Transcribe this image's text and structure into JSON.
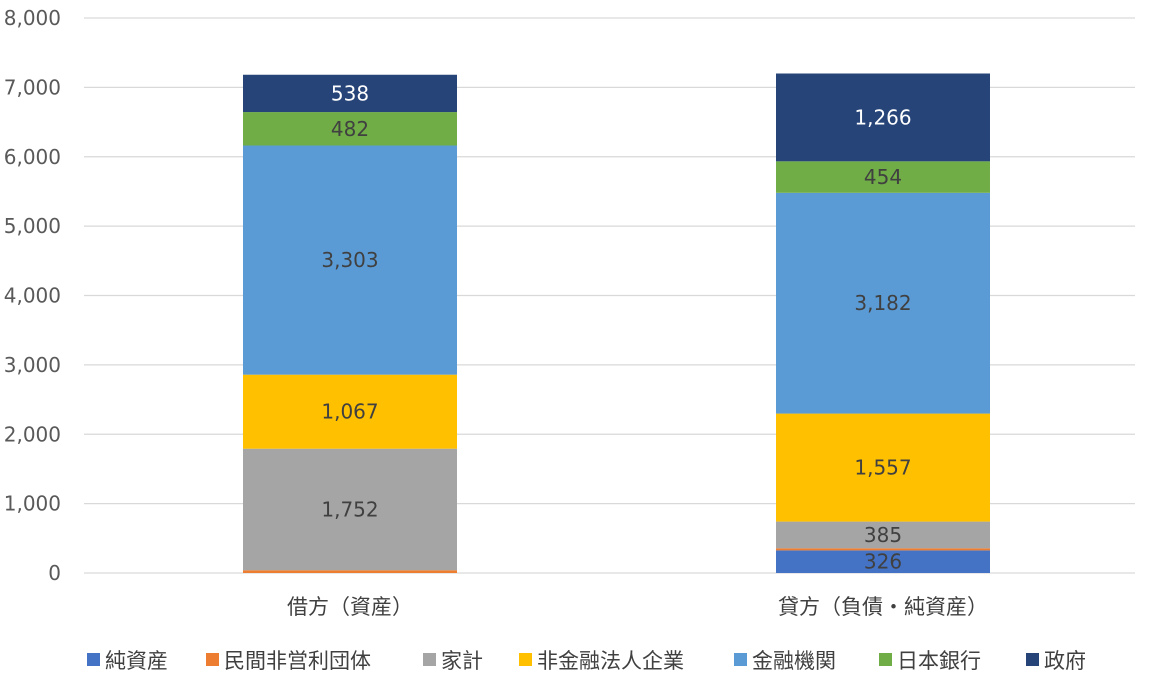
{
  "chart_data": {
    "type": "bar",
    "stacked": true,
    "title": "",
    "xlabel": "",
    "ylabel": "",
    "ylim": [
      0,
      8000
    ],
    "yticks": [
      0,
      1000,
      2000,
      3000,
      4000,
      5000,
      6000,
      7000,
      8000
    ],
    "ytick_labels": [
      "0",
      "1,000",
      "2,000",
      "3,000",
      "4,000",
      "5,000",
      "6,000",
      "7,000",
      "8,000"
    ],
    "grid": true,
    "legend_position": "bottom",
    "categories": [
      "借方（資産）",
      "貸方（負債・純資産）"
    ],
    "series": [
      {
        "name": "純資産",
        "color": "#4472C4",
        "values": [
          0,
          326
        ],
        "labels": [
          "",
          "326"
        ],
        "label_color": "#404040"
      },
      {
        "name": "民間非営利団体",
        "color": "#ED7D31",
        "values": [
          40,
          30
        ],
        "labels": [
          "",
          ""
        ],
        "label_color": "#404040"
      },
      {
        "name": "家計",
        "color": "#A5A5A5",
        "values": [
          1752,
          385
        ],
        "labels": [
          "1,752",
          "385"
        ],
        "label_color": "#404040"
      },
      {
        "name": "非金融法人企業",
        "color": "#FFC000",
        "values": [
          1067,
          1557
        ],
        "labels": [
          "1,067",
          "1,557"
        ],
        "label_color": "#404040"
      },
      {
        "name": "金融機関",
        "color": "#5B9BD5",
        "values": [
          3303,
          3182
        ],
        "labels": [
          "3,303",
          "3,182"
        ],
        "label_color": "#404040"
      },
      {
        "name": "日本銀行",
        "color": "#70AD47",
        "values": [
          482,
          454
        ],
        "labels": [
          "482",
          "454"
        ],
        "label_color": "#404040"
      },
      {
        "name": "政府",
        "color": "#264478",
        "values": [
          538,
          1266
        ],
        "labels": [
          "538",
          "1,266"
        ],
        "label_color": "#ffffff"
      }
    ]
  }
}
